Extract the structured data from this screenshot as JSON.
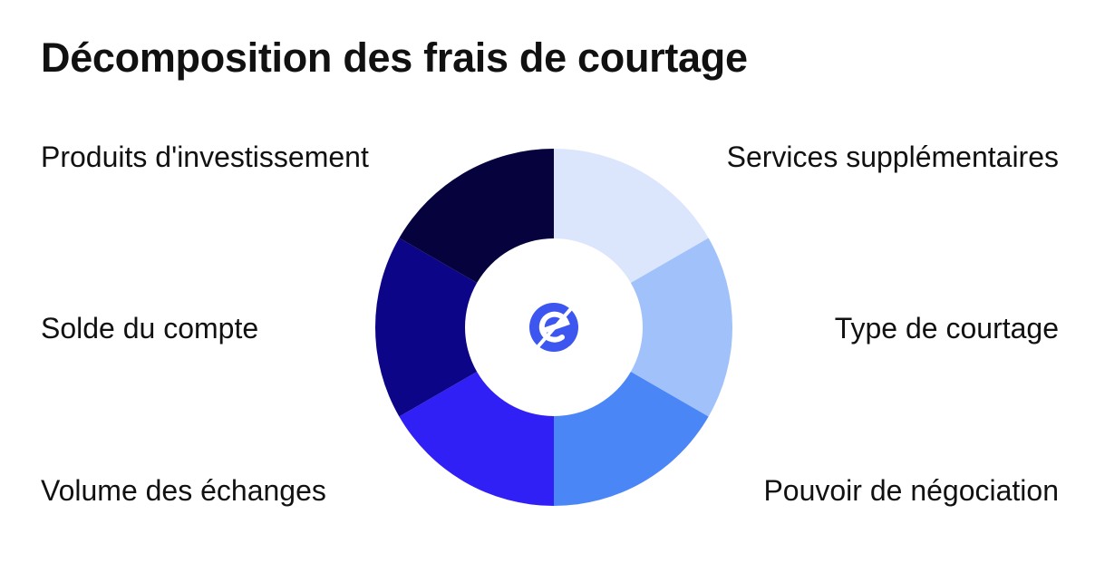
{
  "title": "Décomposition des frais de courtage",
  "segments": [
    {
      "label": "Services supplémentaires",
      "color": "#dbe6fd"
    },
    {
      "label": "Type de courtage",
      "color": "#a1c1fa"
    },
    {
      "label": "Pouvoir de négociation",
      "color": "#4b86f7"
    },
    {
      "label": "Volume des échanges",
      "color": "#3120f6"
    },
    {
      "label": "Solde du compte",
      "color": "#0c0587"
    },
    {
      "label": "Produits d'investissement",
      "color": "#06023e"
    }
  ],
  "center_logo": {
    "icon": "e-logo-icon",
    "color": "#3d56ef"
  }
}
